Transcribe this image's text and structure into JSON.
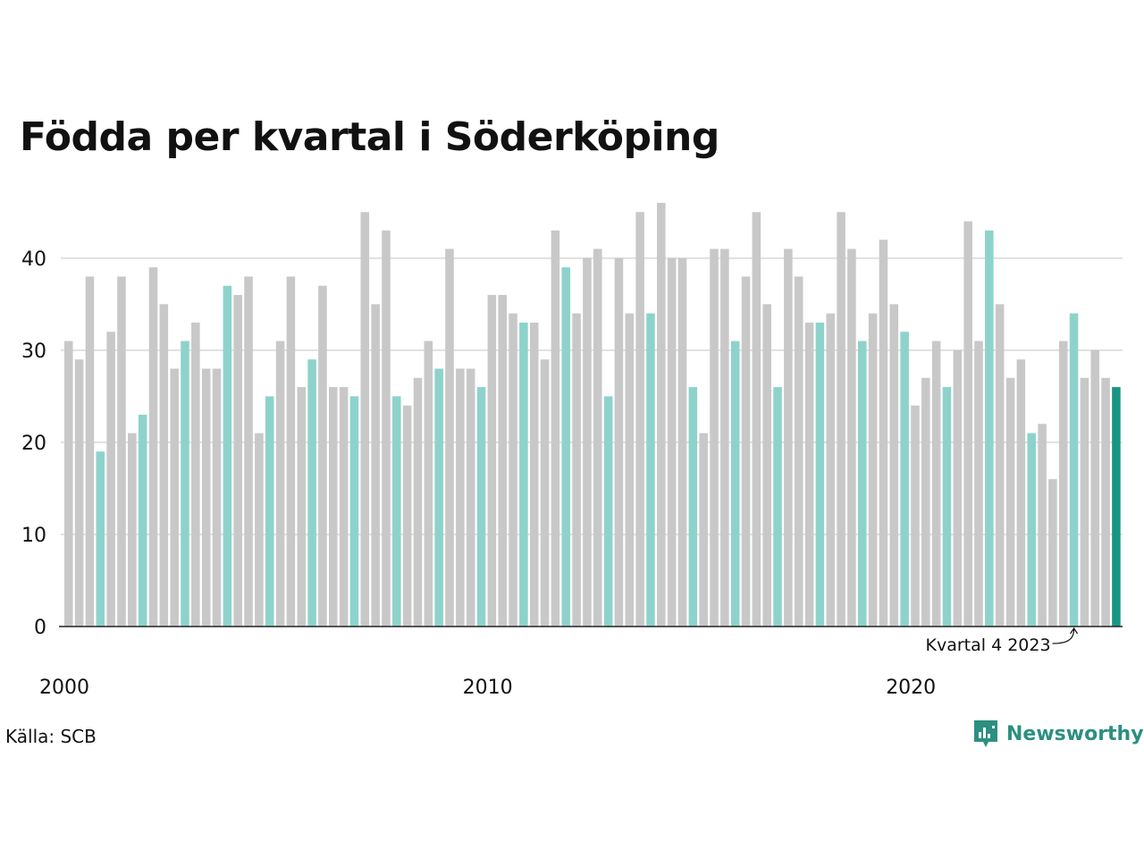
{
  "title": "Födda per kvartal i Söderköping",
  "source": "Källa: SCB",
  "brand": {
    "name": "Newsworthy",
    "icon": "newsworthy-logo-icon"
  },
  "colors": {
    "grey": "#c8c8c8",
    "highlight": "#8dd3cb",
    "latest": "#1a9583",
    "grid": "#e0e0e0",
    "axis": "#222222"
  },
  "chart_data": {
    "type": "bar",
    "title": "Födda per kvartal i Söderköping",
    "xlabel": "",
    "ylabel": "",
    "ylim": [
      0,
      46
    ],
    "yticks": [
      0,
      10,
      20,
      30,
      40
    ],
    "xticks": [
      "2000",
      "2010",
      "2020"
    ],
    "highlight_quarter": "Q4",
    "annotation": "Kvartal 4 2023",
    "series": [
      {
        "values": [
          31,
          29,
          38,
          19,
          32,
          38,
          21,
          23,
          39,
          35,
          28,
          31,
          33,
          28,
          28,
          37,
          36,
          38,
          21,
          25,
          31,
          38,
          26,
          29,
          37,
          26,
          26,
          25,
          45,
          35,
          43,
          25,
          24,
          27,
          31,
          28,
          41,
          28,
          28,
          26,
          36,
          36,
          34,
          33,
          33,
          29,
          43,
          39,
          34,
          40,
          41,
          25,
          40,
          34,
          45,
          34,
          46,
          40,
          40,
          26,
          21,
          41,
          41,
          31,
          38,
          45,
          35,
          26,
          41,
          38,
          33,
          33,
          34,
          45,
          41,
          31,
          34,
          42,
          35,
          32,
          24,
          27,
          31,
          26,
          30,
          44,
          31,
          43,
          35,
          27,
          29,
          21,
          22,
          16,
          31,
          34,
          27,
          30,
          27,
          26
        ]
      }
    ]
  }
}
